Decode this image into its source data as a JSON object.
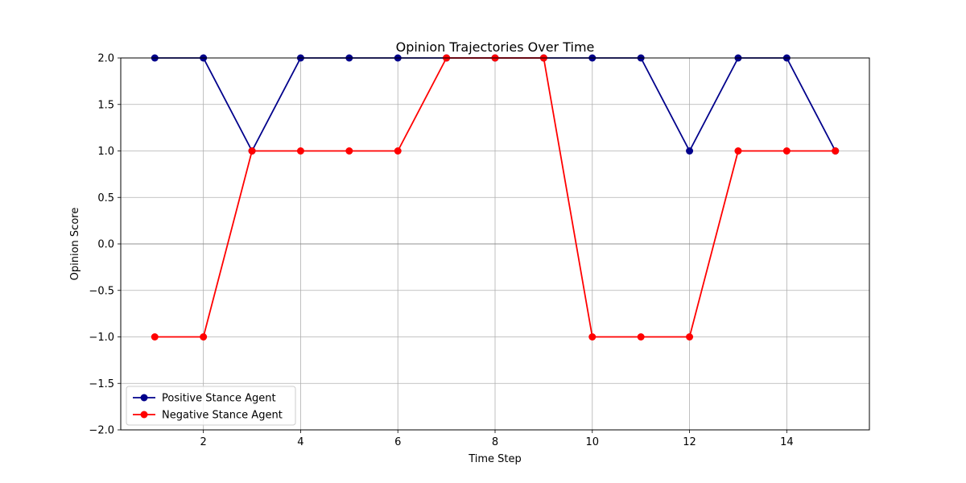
{
  "chart_data": {
    "type": "line",
    "title": "Opinion Trajectories Over Time",
    "xlabel": "Time Step",
    "ylabel": "Opinion Score",
    "x": [
      1,
      2,
      3,
      4,
      5,
      6,
      7,
      8,
      9,
      10,
      11,
      12,
      13,
      14,
      15
    ],
    "xlim": [
      0.3,
      15.7
    ],
    "ylim": [
      -2.0,
      2.0
    ],
    "xticks": [
      2,
      4,
      6,
      8,
      10,
      12,
      14
    ],
    "xtick_labels": [
      "2",
      "4",
      "6",
      "8",
      "10",
      "12",
      "14"
    ],
    "yticks": [
      -2.0,
      -1.5,
      -1.0,
      -0.5,
      0.0,
      0.5,
      1.0,
      1.5,
      2.0
    ],
    "ytick_labels": [
      "−2.0",
      "−1.5",
      "−1.0",
      "−0.5",
      "0.0",
      "0.5",
      "1.0",
      "1.5",
      "2.0"
    ],
    "grid": true,
    "reference_line_y": 0,
    "legend_position": "lower-left",
    "series": [
      {
        "name": "Positive Stance Agent",
        "color": "#00008b",
        "marker": "circle",
        "values": [
          2,
          2,
          1,
          2,
          2,
          2,
          2,
          2,
          2,
          2,
          2,
          1,
          2,
          2,
          1
        ]
      },
      {
        "name": "Negative Stance Agent",
        "color": "#ff0000",
        "marker": "circle",
        "values": [
          -1,
          -1,
          1,
          1,
          1,
          1,
          2,
          2,
          2,
          -1,
          -1,
          -1,
          1,
          1,
          1
        ]
      }
    ]
  }
}
